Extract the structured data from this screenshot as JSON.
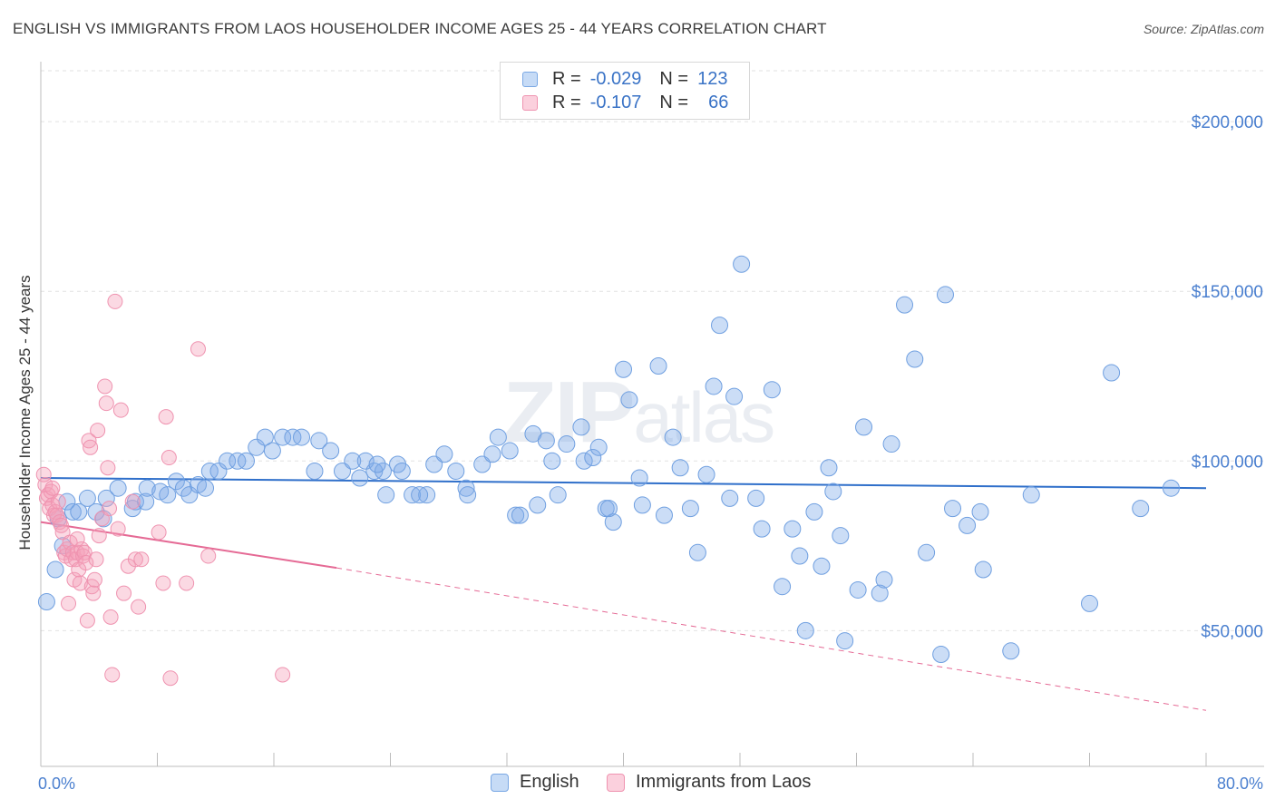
{
  "header": {
    "title": "ENGLISH VS IMMIGRANTS FROM LAOS HOUSEHOLDER INCOME AGES 25 - 44 YEARS CORRELATION CHART",
    "source": "Source: ZipAtlas.com"
  },
  "watermark": {
    "big": "ZIP",
    "small": "atlas"
  },
  "legend": {
    "rows": [
      {
        "r_label": "R =",
        "r_value": "-0.029",
        "n_label": "N =",
        "n_value": "123",
        "color": "#a9c8f0"
      },
      {
        "r_label": "R =",
        "r_value": "-0.107",
        "n_label": "N =",
        "n_value": "66",
        "color": "#f6b7c9"
      }
    ]
  },
  "bottom_legend": {
    "english": "English",
    "laos": "Immigrants from Laos"
  },
  "colors": {
    "english_fill": "rgba(126,171,232,0.40)",
    "english_stroke": "#6f9fe0",
    "english_line": "#2f6fca",
    "laos_fill": "rgba(245,160,186,0.40)",
    "laos_stroke": "#ef93b0",
    "laos_line": "#e56a95",
    "grid": "#e2e2e2",
    "axis_text": "#4a7fcf"
  },
  "chart_data": {
    "type": "scatter",
    "title": "ENGLISH VS IMMIGRANTS FROM LAOS HOUSEHOLDER INCOME AGES 25 - 44 YEARS CORRELATION CHART",
    "xlabel": "",
    "ylabel": "Householder Income Ages 25 - 44 years",
    "xlim": [
      0,
      80
    ],
    "ylim": [
      10000,
      215000
    ],
    "x_tick_labels": [
      {
        "x": 0,
        "label": "0.0%"
      },
      {
        "x": 80,
        "label": "80.0%"
      }
    ],
    "y_ticks": [
      {
        "y": 50000,
        "label": "$50,000"
      },
      {
        "y": 100000,
        "label": "$100,000"
      },
      {
        "y": 150000,
        "label": "$150,000"
      },
      {
        "y": 200000,
        "label": "$200,000"
      }
    ],
    "x_minor_ticks": [
      0,
      8,
      16,
      24,
      32,
      40,
      48,
      56,
      64,
      72,
      80
    ],
    "grid": true,
    "legend_placement": "top-center",
    "series": [
      {
        "name": "English",
        "r": -0.029,
        "n": 123,
        "trend": {
          "x": [
            0,
            80
          ],
          "y": [
            95000,
            92000
          ]
        },
        "points": [
          [
            0.4,
            58500
          ],
          [
            1.0,
            68000
          ],
          [
            1.2,
            83000
          ],
          [
            1.5,
            75000
          ],
          [
            1.8,
            88000
          ],
          [
            2.2,
            85000
          ],
          [
            2.6,
            85000
          ],
          [
            3.2,
            89000
          ],
          [
            3.8,
            85000
          ],
          [
            4.3,
            83000
          ],
          [
            4.5,
            89000
          ],
          [
            5.3,
            92000
          ],
          [
            6.3,
            86000
          ],
          [
            6.5,
            88000
          ],
          [
            7.2,
            88000
          ],
          [
            7.3,
            92000
          ],
          [
            8.2,
            91000
          ],
          [
            8.7,
            90000
          ],
          [
            9.3,
            94000
          ],
          [
            9.8,
            92000
          ],
          [
            10.2,
            90000
          ],
          [
            10.8,
            93000
          ],
          [
            11.6,
            97000
          ],
          [
            12.2,
            97000
          ],
          [
            12.8,
            100000
          ],
          [
            13.5,
            100000
          ],
          [
            14.1,
            100000
          ],
          [
            14.8,
            104000
          ],
          [
            15.4,
            107000
          ],
          [
            15.9,
            103000
          ],
          [
            16.6,
            107000
          ],
          [
            17.3,
            107000
          ],
          [
            17.9,
            107000
          ],
          [
            18.8,
            97000
          ],
          [
            19.1,
            106000
          ],
          [
            19.9,
            103000
          ],
          [
            20.7,
            97000
          ],
          [
            21.4,
            100000
          ],
          [
            21.9,
            95000
          ],
          [
            22.3,
            100000
          ],
          [
            22.9,
            97000
          ],
          [
            23.5,
            97000
          ],
          [
            23.1,
            99000
          ],
          [
            23.7,
            90000
          ],
          [
            24.5,
            99000
          ],
          [
            24.8,
            97000
          ],
          [
            25.5,
            90000
          ],
          [
            26.5,
            90000
          ],
          [
            27.0,
            99000
          ],
          [
            27.7,
            102000
          ],
          [
            28.5,
            97000
          ],
          [
            29.2,
            92000
          ],
          [
            29.3,
            90000
          ],
          [
            30.3,
            99000
          ],
          [
            31.0,
            102000
          ],
          [
            31.4,
            107000
          ],
          [
            32.2,
            103000
          ],
          [
            32.6,
            84000
          ],
          [
            32.9,
            84000
          ],
          [
            33.8,
            108000
          ],
          [
            34.1,
            87000
          ],
          [
            34.7,
            106000
          ],
          [
            35.1,
            100000
          ],
          [
            35.5,
            90000
          ],
          [
            36.1,
            105000
          ],
          [
            37.1,
            110000
          ],
          [
            37.3,
            100000
          ],
          [
            37.9,
            101000
          ],
          [
            38.3,
            104000
          ],
          [
            38.8,
            86000
          ],
          [
            39.3,
            82000
          ],
          [
            40.0,
            127000
          ],
          [
            40.4,
            118000
          ],
          [
            41.1,
            95000
          ],
          [
            41.3,
            87000
          ],
          [
            42.4,
            128000
          ],
          [
            42.8,
            84000
          ],
          [
            43.4,
            107000
          ],
          [
            43.9,
            98000
          ],
          [
            44.6,
            86000
          ],
          [
            45.1,
            73000
          ],
          [
            45.7,
            96000
          ],
          [
            46.2,
            122000
          ],
          [
            46.6,
            140000
          ],
          [
            47.3,
            89000
          ],
          [
            47.6,
            119000
          ],
          [
            48.1,
            158000
          ],
          [
            49.1,
            89000
          ],
          [
            49.5,
            80000
          ],
          [
            50.2,
            121000
          ],
          [
            50.9,
            63000
          ],
          [
            51.6,
            80000
          ],
          [
            52.1,
            72000
          ],
          [
            52.5,
            50000
          ],
          [
            53.1,
            85000
          ],
          [
            53.6,
            69000
          ],
          [
            54.1,
            98000
          ],
          [
            54.4,
            91000
          ],
          [
            54.9,
            78000
          ],
          [
            55.2,
            47000
          ],
          [
            56.1,
            62000
          ],
          [
            56.5,
            110000
          ],
          [
            57.6,
            61000
          ],
          [
            57.9,
            65000
          ],
          [
            58.4,
            105000
          ],
          [
            59.3,
            146000
          ],
          [
            60.0,
            130000
          ],
          [
            60.8,
            73000
          ],
          [
            61.8,
            43000
          ],
          [
            62.1,
            149000
          ],
          [
            62.6,
            86000
          ],
          [
            63.6,
            81000
          ],
          [
            64.5,
            85000
          ],
          [
            64.7,
            68000
          ],
          [
            66.6,
            44000
          ],
          [
            68.0,
            90000
          ],
          [
            72.0,
            58000
          ],
          [
            73.5,
            126000
          ],
          [
            75.5,
            86000
          ],
          [
            77.6,
            92000
          ],
          [
            11.3,
            92000
          ],
          [
            26.0,
            90000
          ],
          [
            39.0,
            86000
          ]
        ]
      },
      {
        "name": "Immigrants from Laos",
        "r": -0.107,
        "n": 66,
        "trend": {
          "x": [
            0,
            20.3
          ],
          "y": [
            82000,
            68500
          ]
        },
        "trend_dashed": {
          "x": [
            20.3,
            80
          ],
          "y": [
            68500,
            26500
          ]
        },
        "points": [
          [
            0.2,
            96000
          ],
          [
            0.3,
            93000
          ],
          [
            0.4,
            89000
          ],
          [
            0.5,
            90000
          ],
          [
            0.6,
            86000
          ],
          [
            0.7,
            91000
          ],
          [
            0.8,
            87000
          ],
          [
            0.9,
            84000
          ],
          [
            1.0,
            85000
          ],
          [
            1.1,
            84000
          ],
          [
            1.3,
            82000
          ],
          [
            1.4,
            81000
          ],
          [
            1.5,
            79000
          ],
          [
            1.6,
            73000
          ],
          [
            1.7,
            72000
          ],
          [
            1.8,
            74000
          ],
          [
            1.9,
            58000
          ],
          [
            2.0,
            76000
          ],
          [
            2.1,
            71000
          ],
          [
            2.2,
            73000
          ],
          [
            2.3,
            65000
          ],
          [
            2.4,
            71000
          ],
          [
            2.5,
            73000
          ],
          [
            2.6,
            68000
          ],
          [
            2.7,
            64000
          ],
          [
            2.8,
            74000
          ],
          [
            2.9,
            72000
          ],
          [
            3.0,
            73000
          ],
          [
            3.1,
            70000
          ],
          [
            3.2,
            53000
          ],
          [
            3.3,
            106000
          ],
          [
            3.4,
            104000
          ],
          [
            3.5,
            63000
          ],
          [
            3.6,
            61000
          ],
          [
            3.7,
            65000
          ],
          [
            3.9,
            109000
          ],
          [
            4.0,
            78000
          ],
          [
            4.2,
            83000
          ],
          [
            4.4,
            122000
          ],
          [
            4.5,
            117000
          ],
          [
            4.6,
            98000
          ],
          [
            4.7,
            86000
          ],
          [
            4.8,
            54000
          ],
          [
            4.9,
            37000
          ],
          [
            5.1,
            147000
          ],
          [
            5.3,
            80000
          ],
          [
            5.5,
            115000
          ],
          [
            5.7,
            61000
          ],
          [
            6.0,
            69000
          ],
          [
            6.3,
            88000
          ],
          [
            6.5,
            71000
          ],
          [
            6.7,
            57000
          ],
          [
            6.9,
            71000
          ],
          [
            8.1,
            79000
          ],
          [
            8.4,
            64000
          ],
          [
            8.6,
            113000
          ],
          [
            8.8,
            101000
          ],
          [
            8.9,
            36000
          ],
          [
            10.0,
            64000
          ],
          [
            10.8,
            133000
          ],
          [
            11.5,
            72000
          ],
          [
            16.6,
            37000
          ],
          [
            1.2,
            88000
          ],
          [
            2.5,
            77000
          ],
          [
            0.8,
            92000
          ],
          [
            3.8,
            71000
          ]
        ]
      }
    ]
  }
}
